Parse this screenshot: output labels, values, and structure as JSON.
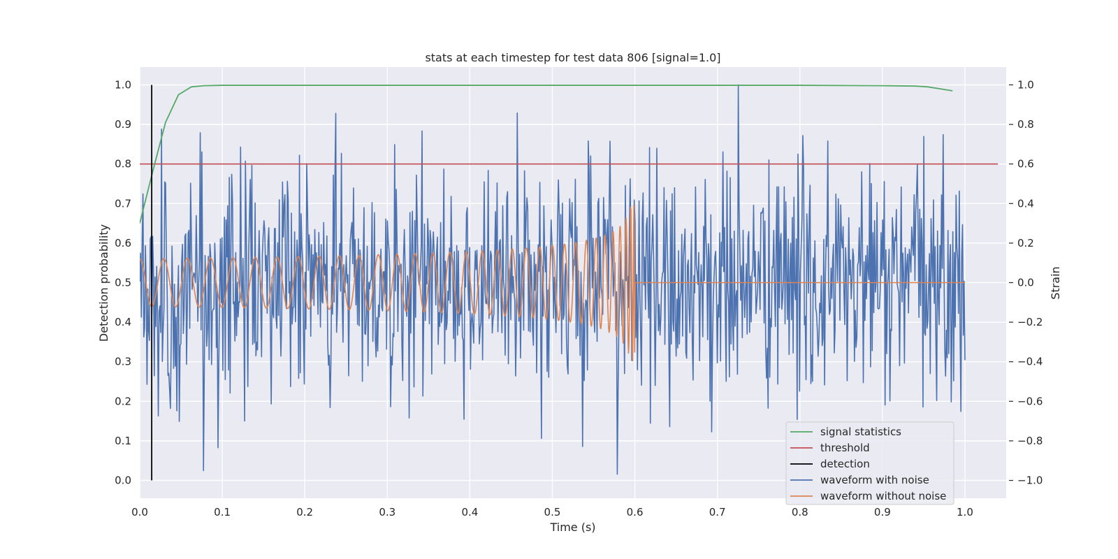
{
  "chart_data": {
    "type": "line",
    "title": "stats at each timestep for test data 806 [signal=1.0]",
    "xlabel": "Time (s)",
    "ylabel": "Detection probability",
    "y2label": "Strain",
    "xlim": [
      0.0,
      1.05
    ],
    "ylim": [
      -0.045,
      1.045
    ],
    "y2lim": [
      -1.09,
      1.09
    ],
    "xticks": [
      "0.0",
      "0.1",
      "0.2",
      "0.3",
      "0.4",
      "0.5",
      "0.6",
      "0.7",
      "0.8",
      "0.9",
      "1.0"
    ],
    "yticks": [
      "0.0",
      "0.1",
      "0.2",
      "0.3",
      "0.4",
      "0.5",
      "0.6",
      "0.7",
      "0.8",
      "0.9",
      "1.0"
    ],
    "y2ticks": [
      "−1.0",
      "−0.8",
      "−0.6",
      "−0.4",
      "−0.2",
      "0.0",
      "0.2",
      "0.4",
      "0.6",
      "0.8",
      "1.0"
    ],
    "grid": true,
    "legend_position": "lower-right",
    "colors": {
      "background": "#eaeaf2",
      "grid": "#ffffff",
      "signal_statistics": "#55a868",
      "threshold": "#c44e52",
      "detection": "#000000",
      "waveform_with_noise": "#4c72b0",
      "waveform_without_noise": "#dd8452"
    },
    "series": [
      {
        "name": "signal statistics",
        "axis": "left",
        "x": [
          0.0,
          0.0156,
          0.0312,
          0.0469,
          0.0625,
          0.078,
          0.1,
          0.2,
          0.4,
          0.6,
          0.8,
          0.9,
          0.94,
          0.955,
          0.97,
          0.985
        ],
        "values": [
          0.65,
          0.78,
          0.905,
          0.975,
          0.995,
          0.998,
          0.999,
          0.999,
          0.999,
          0.999,
          0.999,
          0.998,
          0.997,
          0.995,
          0.99,
          0.985
        ]
      },
      {
        "name": "threshold",
        "axis": "left",
        "x": [
          0.0,
          1.04
        ],
        "values": [
          0.8,
          0.8
        ]
      },
      {
        "name": "detection",
        "axis": "left",
        "x": [
          0.0145,
          0.0145
        ],
        "values": [
          0.0,
          1.0
        ]
      },
      {
        "name": "waveform with noise",
        "axis": "right",
        "x_range": [
          0.0,
          1.0
        ],
        "n_points": 1024,
        "rms": 0.3,
        "y_range": [
          -1.0,
          1.0
        ]
      },
      {
        "name": "waveform without noise",
        "axis": "right",
        "x_range": [
          0.0,
          1.0
        ],
        "n_points": 2000,
        "start_frequency_hz": 34,
        "merger_time_s": 0.6,
        "start_amplitude": 0.12,
        "peak_amplitude": 0.4,
        "post_merger_value": 0.0
      }
    ],
    "legend": [
      "signal statistics",
      "threshold",
      "detection",
      "waveform with noise",
      "waveform without noise"
    ]
  }
}
